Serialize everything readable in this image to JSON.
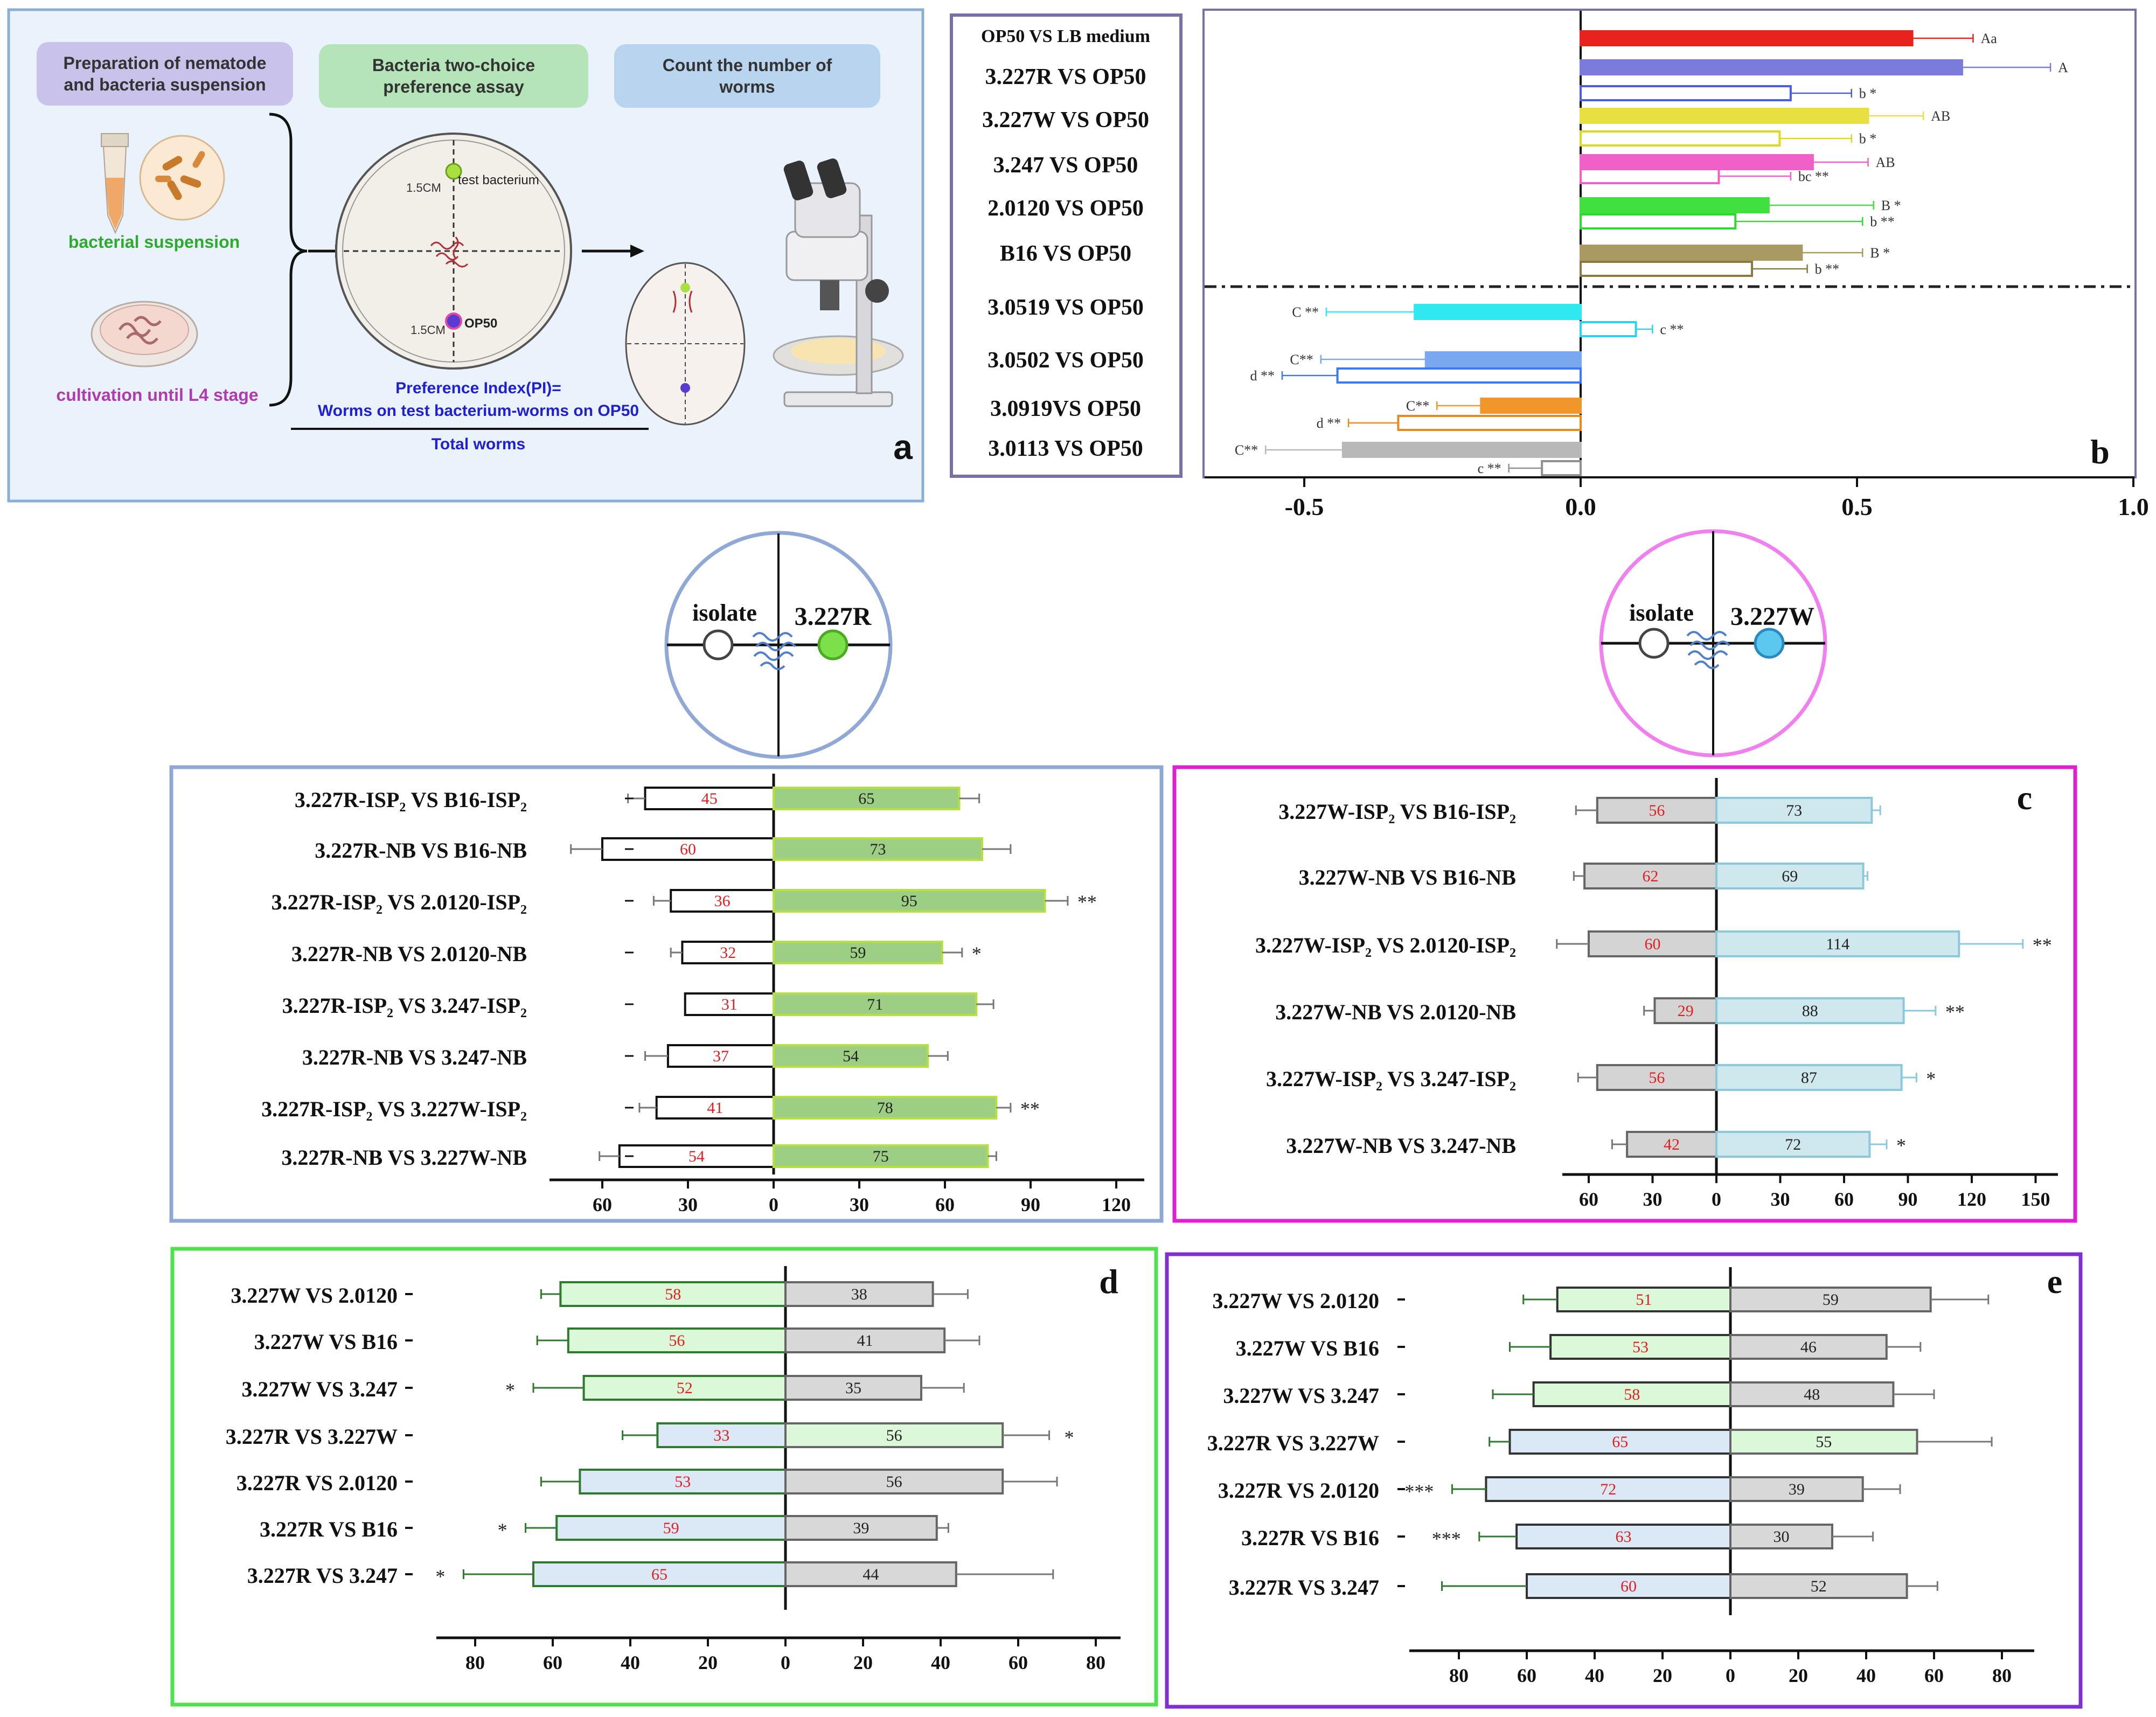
{
  "panel_a": {
    "letter": "a",
    "step1": "Preparation of nematode\nand bacteria suspension",
    "step2": "Bacteria two-choice\npreference assay",
    "step3": "Count the number of\nworms",
    "bacterial_suspension": "bacterial suspension",
    "cultivation": "cultivation until L4 stage",
    "dist_top": "1.5CM",
    "dist_bottom": "1.5CM",
    "test_bacterium": "test bacterium",
    "op50": "OP50",
    "pi_line1": "Preference Index(PI)=",
    "pi_line2": "Worms on test bacterium-worms on OP50",
    "pi_line3": "Total worms",
    "colors": {
      "step1": "#c9c3ec",
      "step2": "#b6e4b9",
      "step3": "#b9d4ee",
      "bg": "#eaf3fb",
      "border": "#8aaed4"
    }
  },
  "panel_b_labels": [
    "OP50 VS LB medium",
    "3.227R VS OP50",
    "3.227W VS OP50",
    "3.247 VS OP50",
    "2.0120 VS OP50",
    "B16 VS OP50",
    "3.0519 VS OP50",
    "3.0502 VS OP50",
    "3.0919VS OP50",
    "3.0113 VS OP50"
  ],
  "panel_c_left_circle": {
    "isolate": "isolate",
    "strain": "3.227R",
    "color": "#8fa8d6",
    "dot": "#7be04a"
  },
  "panel_c_right_circle": {
    "isolate": "isolate",
    "strain": "3.227W",
    "color": "#f07ff0",
    "dot": "#5cc8f0"
  },
  "chart_data": [
    {
      "panel": "b",
      "type": "bar",
      "orientation": "horizontal",
      "letter": "b",
      "xlim": [
        -0.75,
        1.0
      ],
      "xticks": [
        -0.5,
        0.0,
        0.5,
        1.0
      ],
      "tick_labels": [
        "-0.5",
        "0.0",
        "0.5",
        "1.0"
      ],
      "categories": [
        "OP50 VS LB medium",
        "3.227R VS OP50",
        "3.227W VS OP50",
        "3.247 VS OP50",
        "2.0120 VS OP50",
        "B16 VS OP50",
        "3.0519 VS OP50",
        "3.0502 VS OP50",
        "3.0919VS OP50",
        "3.0113 VS OP50"
      ],
      "bars": [
        {
          "value": 0.6,
          "err": 0.11,
          "color": "#e8231e",
          "filled": true,
          "label": "Aa"
        },
        {
          "value": 0.69,
          "err": 0.16,
          "color": "#7b7bdc",
          "filled": true,
          "label": "A"
        },
        {
          "value": 0.38,
          "err": 0.11,
          "color": "#4a5fd9",
          "filled": false,
          "label": "b *"
        },
        {
          "value": 0.52,
          "err": 0.1,
          "color": "#e8e040",
          "filled": true,
          "label": "AB"
        },
        {
          "value": 0.36,
          "err": 0.13,
          "color": "#e0d820",
          "filled": false,
          "label": "b *"
        },
        {
          "value": 0.42,
          "err": 0.1,
          "color": "#f060c8",
          "filled": true,
          "label": "AB"
        },
        {
          "value": 0.25,
          "err": 0.13,
          "color": "#f060c8",
          "filled": false,
          "label": "bc **"
        },
        {
          "value": 0.34,
          "err": 0.19,
          "color": "#40e040",
          "filled": true,
          "label": "B *"
        },
        {
          "value": 0.28,
          "err": 0.23,
          "color": "#30d830",
          "filled": false,
          "label": "b **"
        },
        {
          "value": 0.4,
          "err": 0.11,
          "color": "#a89a60",
          "filled": true,
          "label": "B *"
        },
        {
          "value": 0.31,
          "err": 0.1,
          "color": "#8a7a40",
          "filled": false,
          "label": "b **"
        },
        {
          "value": -0.3,
          "err": 0.16,
          "color": "#30e8f0",
          "filled": true,
          "label": "C **"
        },
        {
          "value": 0.1,
          "err": 0.03,
          "color": "#30d0f0",
          "filled": false,
          "label": "c **"
        },
        {
          "value": -0.28,
          "err": 0.19,
          "color": "#7aa8f0",
          "filled": true,
          "label": "C**"
        },
        {
          "value": -0.44,
          "err": 0.1,
          "color": "#3a7af0",
          "filled": false,
          "label": "d **"
        },
        {
          "value": -0.18,
          "err": 0.08,
          "color": "#f0962a",
          "filled": true,
          "label": "C**"
        },
        {
          "value": -0.33,
          "err": 0.09,
          "color": "#e88a20",
          "filled": false,
          "label": "d **"
        },
        {
          "value": -0.43,
          "err": 0.14,
          "color": "#b8b8b8",
          "filled": true,
          "label": "C**"
        },
        {
          "value": -0.07,
          "err": 0.06,
          "color": "#909090",
          "filled": false,
          "label": "c **"
        }
      ]
    },
    {
      "panel": "c-left",
      "type": "bar",
      "orientation": "horizontal",
      "categories": [
        "3.227R-ISP₂ VS B16-ISP₂",
        "3.227R-NB VS B16-NB",
        "3.227R-ISP₂ VS 2.0120-ISP₂",
        "3.227R-NB VS 2.0120-NB",
        "3.227R-ISP₂ VS 3.247-ISP₂",
        "3.227R-NB VS 3.247-NB",
        "3.227R-ISP₂ VS 3.227W-ISP₂",
        "3.227R-NB VS 3.227W-NB"
      ],
      "left_values": [
        45,
        60,
        36,
        32,
        31,
        37,
        41,
        54
      ],
      "right_values": [
        65,
        73,
        95,
        59,
        71,
        54,
        78,
        75
      ],
      "left_err": [
        6,
        11,
        6,
        4,
        0,
        8,
        6,
        7
      ],
      "right_err": [
        7,
        10,
        8,
        7,
        6,
        7,
        5,
        3
      ],
      "sig": [
        "",
        "",
        "**",
        "*",
        "",
        "",
        "**",
        ""
      ],
      "xticks_left": [
        60,
        30,
        0
      ],
      "xticks_right": [
        30,
        60,
        90,
        120
      ],
      "tick_labels": [
        "60",
        "30",
        "0",
        "30",
        "60",
        "90",
        "120"
      ],
      "max": 125
    },
    {
      "panel": "c-right",
      "type": "bar",
      "orientation": "horizontal",
      "letter": "c",
      "categories": [
        "3.227W-ISP₂ VS B16-ISP₂",
        "3.227W-NB VS B16-NB",
        "3.227W-ISP₂ VS 2.0120-ISP₂",
        "3.227W-NB VS 2.0120-NB",
        "3.227W-ISP₂ VS 3.247-ISP₂",
        "3.227W-NB VS 3.247-NB"
      ],
      "left_values": [
        56,
        62,
        60,
        29,
        56,
        42
      ],
      "right_values": [
        73,
        69,
        114,
        88,
        87,
        72
      ],
      "left_err": [
        10,
        5,
        15,
        5,
        9,
        7
      ],
      "right_err": [
        4,
        2,
        30,
        15,
        7,
        8
      ],
      "sig": [
        "",
        "",
        "**",
        "**",
        "*",
        "*"
      ],
      "tick_labels": [
        "60",
        "30",
        "0",
        "30",
        "60",
        "90",
        "120",
        "150"
      ],
      "max": 150
    },
    {
      "panel": "d",
      "type": "bar",
      "orientation": "horizontal",
      "letter": "d",
      "categories": [
        "3.227W VS 2.0120",
        "3.227W VS B16",
        "3.227W VS 3.247",
        "3.227R VS 3.227W",
        "3.227R VS 2.0120",
        "3.227R VS B16",
        "3.227R VS 3.247"
      ],
      "left_values": [
        58,
        56,
        52,
        33,
        53,
        59,
        65
      ],
      "right_values": [
        38,
        41,
        35,
        56,
        56,
        39,
        44
      ],
      "left_err": [
        5,
        8,
        13,
        9,
        10,
        8,
        18
      ],
      "right_err": [
        9,
        9,
        11,
        12,
        14,
        3,
        25
      ],
      "left_sig": [
        "",
        "",
        "*",
        "",
        "",
        "*",
        "*"
      ],
      "right_sig": [
        "",
        "",
        "",
        "*",
        "",
        "",
        ""
      ],
      "tick_labels": [
        "80",
        "60",
        "40",
        "20",
        "0",
        "20",
        "40",
        "60",
        "80"
      ],
      "max": 90
    },
    {
      "panel": "e",
      "type": "bar",
      "orientation": "horizontal",
      "letter": "e",
      "categories": [
        "3.227W VS 2.0120",
        "3.227W VS B16",
        "3.227W VS 3.247",
        "3.227R VS 3.227W",
        "3.227R VS 2.0120",
        "3.227R VS B16",
        "3.227R VS 3.247"
      ],
      "left_values": [
        51,
        53,
        58,
        65,
        72,
        63,
        60
      ],
      "right_values": [
        59,
        46,
        48,
        55,
        39,
        30,
        52
      ],
      "left_err": [
        10,
        12,
        12,
        6,
        10,
        11,
        25
      ],
      "right_err": [
        17,
        10,
        12,
        22,
        11,
        12,
        9
      ],
      "left_sig": [
        "",
        "",
        "",
        "",
        "***",
        "***",
        ""
      ],
      "tick_labels": [
        "80",
        "60",
        "40",
        "20",
        "0",
        "20",
        "40",
        "60",
        "80"
      ],
      "max": 90
    }
  ]
}
